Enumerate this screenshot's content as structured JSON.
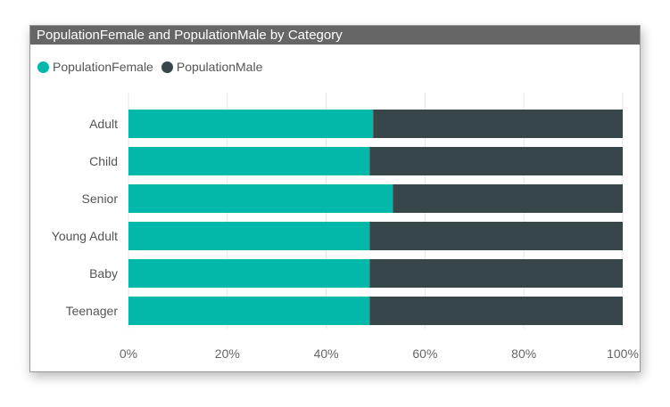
{
  "window": {
    "title": "PopulationFemale and PopulationMale by Category"
  },
  "colors": {
    "female": "#01b8aa",
    "male": "#374649",
    "grid": "#e6e6e6",
    "titlebar": "#666666"
  },
  "chart_data": {
    "type": "bar",
    "orientation": "horizontal",
    "stacked": "100%",
    "title": "PopulationFemale and PopulationMale by Category",
    "legend_position": "top-left",
    "categories": [
      "Adult",
      "Child",
      "Senior",
      "Young Adult",
      "Baby",
      "Teenager"
    ],
    "series": [
      {
        "name": "PopulationFemale",
        "values": [
          49.5,
          48.8,
          53.5,
          48.8,
          48.8,
          48.8
        ]
      },
      {
        "name": "PopulationMale",
        "values": [
          50.5,
          51.2,
          46.5,
          51.2,
          51.2,
          51.2
        ]
      }
    ],
    "xlim": [
      0,
      100
    ],
    "x_ticks": [
      "0%",
      "20%",
      "40%",
      "60%",
      "80%",
      "100%"
    ],
    "grid": true
  }
}
